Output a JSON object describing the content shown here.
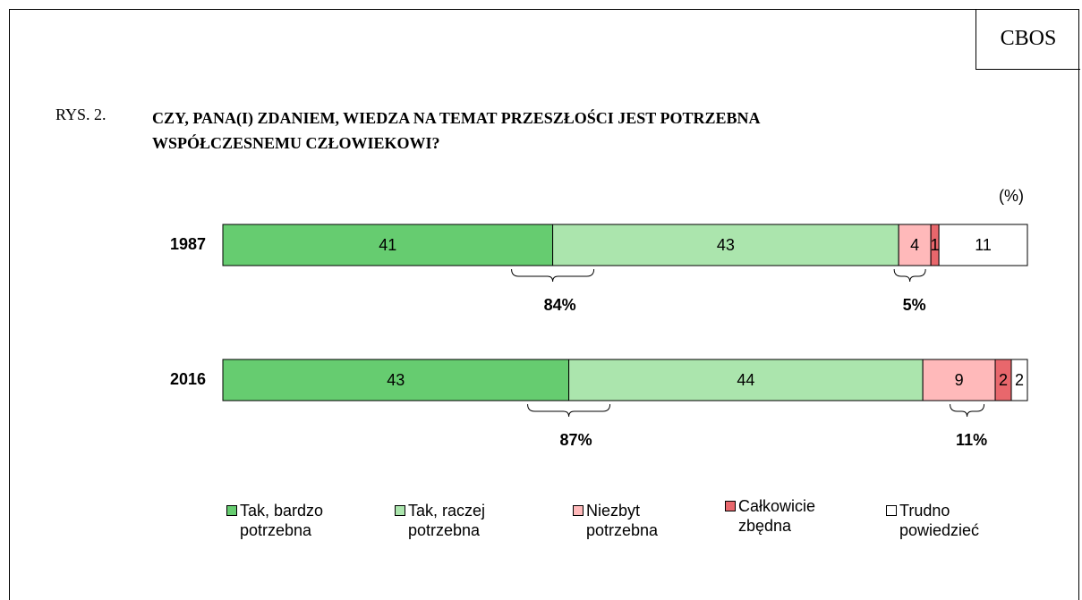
{
  "chart_data": {
    "type": "stacked-bar-horizontal",
    "source": "CBOS",
    "figure_label": "RYS. 2.",
    "title": "CZY, PANA(I) ZDANIEM, WIEDZA NA TEMAT PRZESZŁOŚCI JEST POTRZEBNA WSPÓŁCZESNEMU CZŁOWIEKOWI?",
    "unit_label": "(%)",
    "categories": [
      "1987",
      "2016"
    ],
    "xlim": [
      0,
      100
    ],
    "series": [
      {
        "name": "Tak, bardzo potrzebna",
        "color": "#66cc70",
        "values": [
          41,
          43
        ]
      },
      {
        "name": "Tak, raczej potrzebna",
        "color": "#abe5ad",
        "values": [
          43,
          44
        ]
      },
      {
        "name": "Niezbyt potrzebna",
        "color": "#ffb9ba",
        "values": [
          4,
          9
        ]
      },
      {
        "name": "Całkowicie zbędna",
        "color": "#e8676c",
        "values": [
          1,
          2
        ]
      },
      {
        "name": "Trudno powiedzieć",
        "color": "#ffffff",
        "values": [
          11,
          2
        ]
      }
    ],
    "annotations": [
      "84%",
      "5%",
      "87%",
      "11%"
    ]
  }
}
